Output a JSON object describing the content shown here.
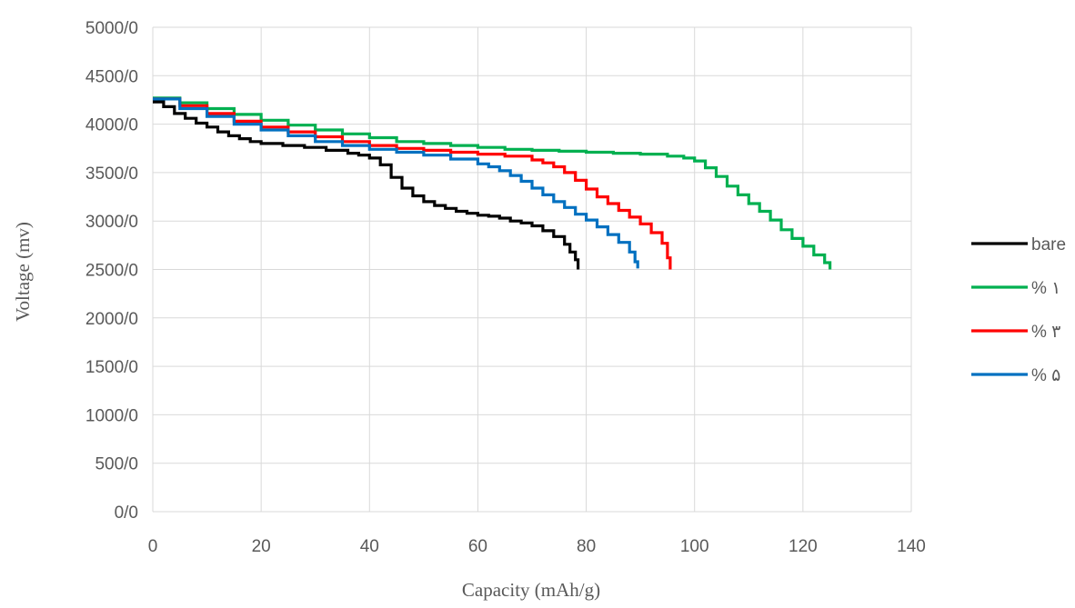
{
  "chart_data": {
    "type": "line",
    "title": "",
    "xlabel": "Capacity (mAh/g)",
    "ylabel": "Voltage (mv)",
    "xlim": [
      0,
      140
    ],
    "ylim": [
      0,
      5000
    ],
    "x_ticks": [
      "0",
      "20",
      "40",
      "60",
      "80",
      "100",
      "120",
      "140"
    ],
    "y_ticks": [
      "0/0",
      "500/0",
      "1000/0",
      "1500/0",
      "2000/0",
      "2500/0",
      "3000/0",
      "3500/0",
      "4000/0",
      "4500/0",
      "5000/0"
    ],
    "grid": true,
    "legend_position": "right",
    "series": [
      {
        "name": "bare",
        "color": "#000000",
        "points": [
          [
            0,
            4230
          ],
          [
            2,
            4180
          ],
          [
            4,
            4110
          ],
          [
            6,
            4060
          ],
          [
            8,
            4010
          ],
          [
            10,
            3970
          ],
          [
            12,
            3920
          ],
          [
            14,
            3880
          ],
          [
            16,
            3850
          ],
          [
            18,
            3820
          ],
          [
            20,
            3800
          ],
          [
            24,
            3780
          ],
          [
            28,
            3760
          ],
          [
            32,
            3730
          ],
          [
            36,
            3700
          ],
          [
            38,
            3680
          ],
          [
            40,
            3650
          ],
          [
            42,
            3580
          ],
          [
            44,
            3450
          ],
          [
            46,
            3340
          ],
          [
            48,
            3260
          ],
          [
            50,
            3200
          ],
          [
            52,
            3160
          ],
          [
            54,
            3130
          ],
          [
            56,
            3100
          ],
          [
            58,
            3080
          ],
          [
            60,
            3060
          ],
          [
            62,
            3050
          ],
          [
            64,
            3030
          ],
          [
            66,
            3000
          ],
          [
            68,
            2980
          ],
          [
            70,
            2950
          ],
          [
            72,
            2900
          ],
          [
            74,
            2840
          ],
          [
            76,
            2760
          ],
          [
            77,
            2680
          ],
          [
            78,
            2600
          ],
          [
            78.5,
            2500
          ]
        ]
      },
      {
        "name": "% ۱",
        "color": "#00b050",
        "points": [
          [
            0,
            4270
          ],
          [
            5,
            4220
          ],
          [
            10,
            4160
          ],
          [
            15,
            4100
          ],
          [
            20,
            4040
          ],
          [
            25,
            3990
          ],
          [
            30,
            3940
          ],
          [
            35,
            3900
          ],
          [
            40,
            3860
          ],
          [
            45,
            3820
          ],
          [
            50,
            3800
          ],
          [
            55,
            3780
          ],
          [
            60,
            3760
          ],
          [
            65,
            3740
          ],
          [
            70,
            3730
          ],
          [
            75,
            3720
          ],
          [
            80,
            3710
          ],
          [
            85,
            3700
          ],
          [
            90,
            3690
          ],
          [
            95,
            3670
          ],
          [
            98,
            3650
          ],
          [
            100,
            3620
          ],
          [
            102,
            3550
          ],
          [
            104,
            3460
          ],
          [
            106,
            3360
          ],
          [
            108,
            3270
          ],
          [
            110,
            3180
          ],
          [
            112,
            3100
          ],
          [
            114,
            3010
          ],
          [
            116,
            2910
          ],
          [
            118,
            2820
          ],
          [
            120,
            2740
          ],
          [
            122,
            2650
          ],
          [
            124,
            2570
          ],
          [
            125,
            2500
          ]
        ]
      },
      {
        "name": "% ۳",
        "color": "#ff0000",
        "points": [
          [
            0,
            4260
          ],
          [
            5,
            4190
          ],
          [
            10,
            4110
          ],
          [
            15,
            4030
          ],
          [
            20,
            3970
          ],
          [
            25,
            3920
          ],
          [
            30,
            3870
          ],
          [
            35,
            3820
          ],
          [
            40,
            3780
          ],
          [
            45,
            3750
          ],
          [
            50,
            3730
          ],
          [
            55,
            3710
          ],
          [
            60,
            3690
          ],
          [
            65,
            3670
          ],
          [
            70,
            3630
          ],
          [
            72,
            3600
          ],
          [
            74,
            3560
          ],
          [
            76,
            3500
          ],
          [
            78,
            3420
          ],
          [
            80,
            3330
          ],
          [
            82,
            3250
          ],
          [
            84,
            3180
          ],
          [
            86,
            3110
          ],
          [
            88,
            3040
          ],
          [
            90,
            2970
          ],
          [
            92,
            2880
          ],
          [
            94,
            2770
          ],
          [
            95,
            2620
          ],
          [
            95.5,
            2500
          ]
        ]
      },
      {
        "name": "% ۵",
        "color": "#0070c0",
        "points": [
          [
            0,
            4260
          ],
          [
            5,
            4160
          ],
          [
            10,
            4080
          ],
          [
            15,
            4000
          ],
          [
            20,
            3940
          ],
          [
            25,
            3880
          ],
          [
            30,
            3820
          ],
          [
            35,
            3780
          ],
          [
            40,
            3740
          ],
          [
            45,
            3710
          ],
          [
            50,
            3680
          ],
          [
            55,
            3640
          ],
          [
            60,
            3590
          ],
          [
            62,
            3560
          ],
          [
            64,
            3520
          ],
          [
            66,
            3470
          ],
          [
            68,
            3410
          ],
          [
            70,
            3340
          ],
          [
            72,
            3270
          ],
          [
            74,
            3200
          ],
          [
            76,
            3140
          ],
          [
            78,
            3070
          ],
          [
            80,
            3010
          ],
          [
            82,
            2940
          ],
          [
            84,
            2860
          ],
          [
            86,
            2780
          ],
          [
            88,
            2680
          ],
          [
            89,
            2580
          ],
          [
            89.5,
            2510
          ]
        ]
      }
    ]
  }
}
